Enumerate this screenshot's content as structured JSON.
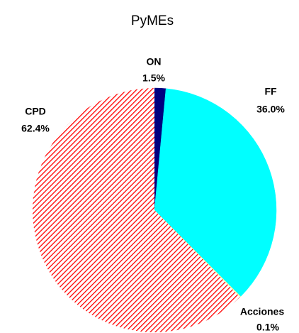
{
  "chart_data": {
    "type": "pie",
    "title": "PyMEs",
    "categories": [
      "ON",
      "FF",
      "Acciones",
      "CPD"
    ],
    "values": [
      1.5,
      36.0,
      0.1,
      62.4
    ],
    "value_labels": [
      "1.5%",
      "36.0%",
      "0.1%",
      "62.4%"
    ],
    "colors": [
      "#000080",
      "#00ffff",
      "#ffff99",
      "#ff0000"
    ],
    "hatched": [
      false,
      false,
      false,
      true
    ]
  }
}
